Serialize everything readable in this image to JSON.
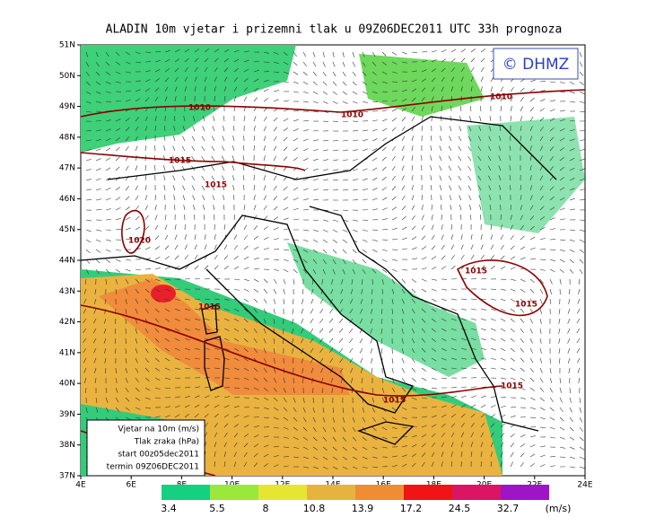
{
  "title": "ALADIN 10m vjetar i prizemni tlak u 09Z06DEC2011 UTC 33h prognoza",
  "logo": "© DHMZ",
  "lat_labels": [
    "51N",
    "50N",
    "49N",
    "48N",
    "47N",
    "46N",
    "45N",
    "44N",
    "43N",
    "42N",
    "41N",
    "40N",
    "39N",
    "38N",
    "37N"
  ],
  "lon_labels": [
    "4E",
    "6E",
    "8E",
    "10E",
    "12E",
    "14E",
    "16E",
    "18E",
    "20E",
    "22E",
    "24E"
  ],
  "info_box": [
    "Vjetar na 10m (m/s)",
    "Tlak zraka (hPa)",
    "start 00z05dec2011",
    "termin 09Z06DEC2011"
  ],
  "isobar_labels": [
    "1010",
    "1010",
    "1010",
    "1015",
    "1015",
    "1020",
    "1015",
    "1015",
    "1015",
    "1015",
    "1015"
  ],
  "colorbar": {
    "labels": [
      "3.4",
      "5.5",
      "8",
      "10.8",
      "13.9",
      "17.2",
      "24.5",
      "32.7"
    ],
    "unit": "(m/s)"
  }
}
